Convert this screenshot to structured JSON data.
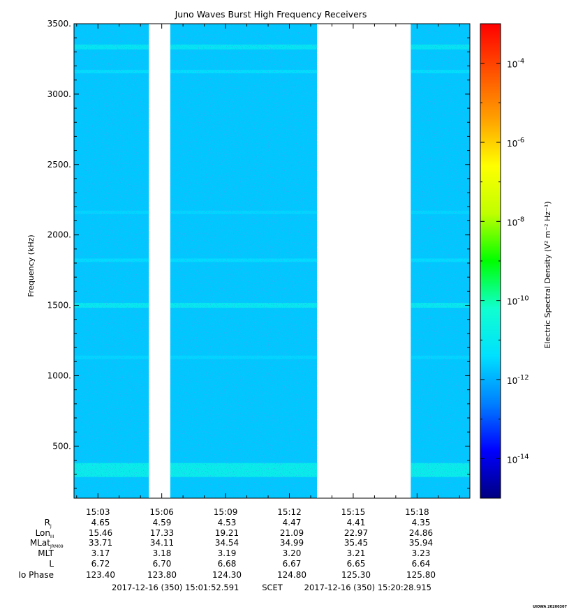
{
  "chart_data": {
    "type": "heatmap",
    "title": "Juno Waves Burst High Frequency Receivers",
    "ylabel": "Frequency (kHz)",
    "ylim": [
      130,
      3500
    ],
    "y_ticks": [
      {
        "value": 500,
        "label": "500."
      },
      {
        "value": 1000,
        "label": "1000."
      },
      {
        "value": 1500,
        "label": "1500."
      },
      {
        "value": 2000,
        "label": "2000."
      },
      {
        "value": 2500,
        "label": "2500."
      },
      {
        "value": 3000,
        "label": "3000."
      },
      {
        "value": 3500,
        "label": "3500."
      }
    ],
    "xlim": [
      "15:01:52.591",
      "15:20:28.915"
    ],
    "x_ticks": [
      "15:03",
      "15:06",
      "15:09",
      "15:12",
      "15:15",
      "15:18"
    ],
    "x_tick_minutes": [
      3,
      6,
      9,
      12,
      15,
      18
    ],
    "data_intervals_minutes": [
      [
        1.88,
        5.4
      ],
      [
        6.4,
        13.3
      ],
      [
        17.7,
        20.48
      ]
    ],
    "background_level_exp": -11.7,
    "emission_lines_khz": [
      {
        "freq": 330,
        "level_exp": -10.8
      },
      {
        "freq": 1500,
        "level_exp": -10.9
      },
      {
        "freq": 3335,
        "level_exp": -11.0
      },
      {
        "freq": 3160,
        "level_exp": -11.3
      },
      {
        "freq": 1820,
        "level_exp": -11.4
      },
      {
        "freq": 2160,
        "level_exp": -11.5
      },
      {
        "freq": 1130,
        "level_exp": -11.5
      }
    ],
    "colorbar": {
      "label": "Electric Spectral Density (V² m⁻² Hz⁻¹)",
      "range_exp": [
        -15,
        -3
      ],
      "ticks": [
        {
          "exp": -14,
          "base": "10",
          "power": "-14"
        },
        {
          "exp": -12,
          "base": "10",
          "power": "-12"
        },
        {
          "exp": -10,
          "base": "10",
          "power": "-10"
        },
        {
          "exp": -8,
          "base": "10",
          "power": "-8"
        },
        {
          "exp": -6,
          "base": "10",
          "power": "-6"
        },
        {
          "exp": -4,
          "base": "10",
          "power": "-4"
        }
      ],
      "colors": [
        "#000080",
        "#0000ff",
        "#0080ff",
        "#00e0ff",
        "#10ffd0",
        "#00ff00",
        "#c0ff00",
        "#ffff00",
        "#ffa000",
        "#ff5000",
        "#ff0000"
      ]
    },
    "ephemeris": {
      "rows": [
        {
          "label": "R",
          "sub": "J",
          "values": [
            "4.65",
            "4.59",
            "4.53",
            "4.47",
            "4.41",
            "4.35"
          ]
        },
        {
          "label": "Lon",
          "sub": "III",
          "values": [
            "15.46",
            "17.33",
            "19.21",
            "21.09",
            "22.97",
            "24.86"
          ]
        },
        {
          "label": "MLat",
          "sub": "JRM09",
          "values": [
            "33.71",
            "34.11",
            "34.54",
            "34.99",
            "35.45",
            "35.94"
          ]
        },
        {
          "label": "MLT",
          "sub": "",
          "values": [
            "3.17",
            "3.18",
            "3.19",
            "3.20",
            "3.21",
            "3.23"
          ]
        },
        {
          "label": "L",
          "sub": "",
          "values": [
            "6.72",
            "6.70",
            "6.68",
            "6.67",
            "6.65",
            "6.64"
          ]
        },
        {
          "label": "Io Phase",
          "sub": "",
          "values": [
            "123.40",
            "123.80",
            "124.30",
            "124.80",
            "125.30",
            "125.80"
          ]
        }
      ]
    },
    "time_range": {
      "start": "2017-12-16 (350) 15:01:52.591",
      "mid": "SCET",
      "end": "2017-12-16 (350) 15:20:28.915"
    },
    "credit": "UIOWA 20200307"
  }
}
